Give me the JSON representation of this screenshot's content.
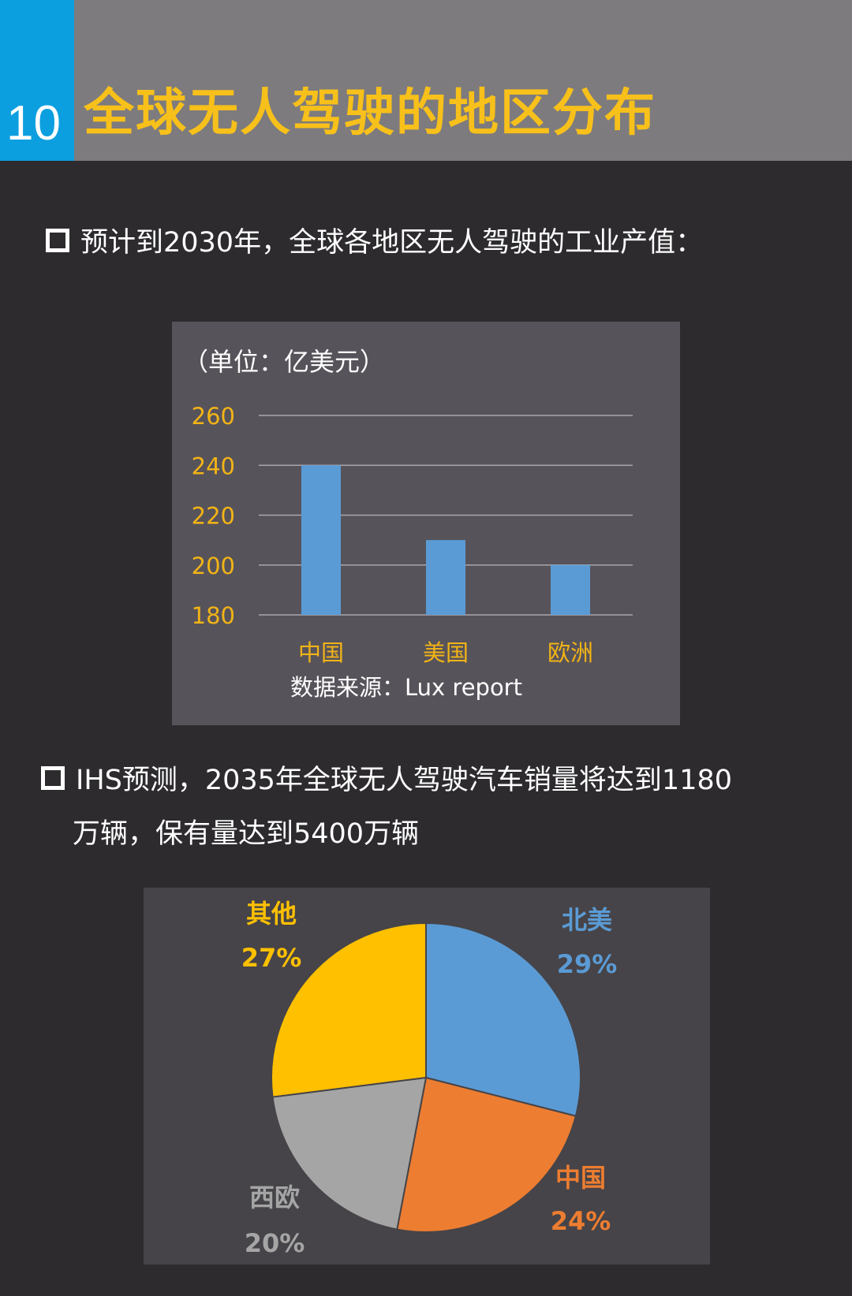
{
  "header": {
    "number": "10",
    "title": "全球无人驾驶的地区分布"
  },
  "section1": {
    "text": "预计到2030年，全球各地区无人驾驶的工业产值："
  },
  "section2": {
    "line1": "IHS预测，2035年全球无人驾驶汽车销量将达到1180",
    "line2": "万辆，保有量达到5400万辆"
  },
  "colors": {
    "accent": "#0c9fe0",
    "title": "#f7c01a",
    "bar": "#5b9bd5",
    "tick": "#f2b416"
  },
  "chart_data": [
    {
      "type": "bar",
      "unit_label": "（单位：亿美元）",
      "source": "数据来源：Lux report",
      "categories": [
        "中国",
        "美国",
        "欧洲"
      ],
      "values": [
        240,
        210,
        200
      ],
      "ylim": [
        180,
        260
      ],
      "yticks": [
        "260",
        "240",
        "220",
        "200",
        "180"
      ],
      "grid": true
    },
    {
      "type": "pie",
      "slices": [
        {
          "label": "北美",
          "value": 29,
          "pct": "29%",
          "color": "#5b9bd5"
        },
        {
          "label": "中国",
          "value": 24,
          "pct": "24%",
          "color": "#ed7d31"
        },
        {
          "label": "西欧",
          "value": 20,
          "pct": "20%",
          "color": "#a5a5a5"
        },
        {
          "label": "其他",
          "value": 27,
          "pct": "27%",
          "color": "#ffc000"
        }
      ]
    }
  ]
}
